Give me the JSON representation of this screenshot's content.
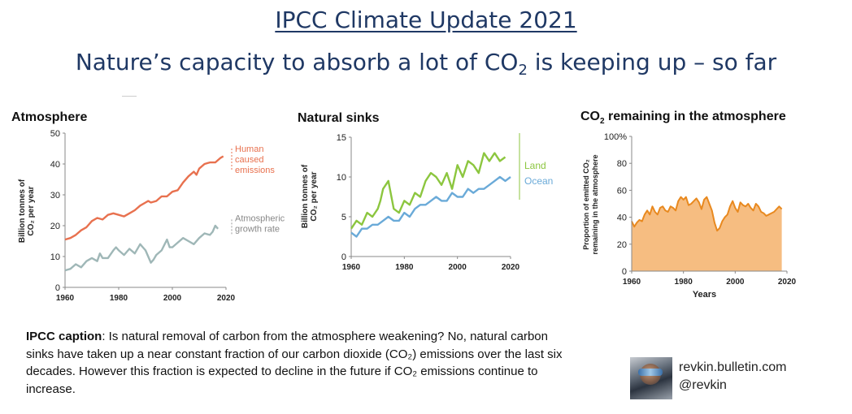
{
  "header": {
    "title": "IPCC Climate Update 2021",
    "subtitle_pre": "Nature’s capacity to absorb a lot of CO",
    "subtitle_sub": "2",
    "subtitle_post": " is keeping up – so far"
  },
  "colors": {
    "title": "#1f3864",
    "emissions": "#e8714f",
    "growth": "#9fb7b7",
    "land": "#8cc63f",
    "ocean": "#6aaad8",
    "remaining": "#f5b26b",
    "remaining_line": "#e8891f"
  },
  "chart_data": [
    {
      "id": "atmosphere",
      "type": "line",
      "title": "Atmosphere",
      "ylabel_line1": "Billion tonnes of",
      "ylabel_line2": "CO₂ per year",
      "xlim": [
        1960,
        2020
      ],
      "ylim": [
        0,
        50
      ],
      "xticks": [
        1960,
        1980,
        2000,
        2020
      ],
      "yticks": [
        0,
        10,
        20,
        30,
        40,
        50
      ],
      "series": [
        {
          "name": "Human caused emissions",
          "label_lines": [
            "Human",
            "caused",
            "emissions"
          ],
          "x": [
            1960,
            1962,
            1964,
            1966,
            1968,
            1970,
            1972,
            1974,
            1976,
            1978,
            1980,
            1982,
            1984,
            1986,
            1988,
            1990,
            1991,
            1992,
            1994,
            1996,
            1998,
            2000,
            2002,
            2004,
            2006,
            2008,
            2009,
            2010,
            2012,
            2014,
            2016,
            2018,
            2019
          ],
          "values": [
            15.5,
            16,
            17,
            18.5,
            19.5,
            21.5,
            22.5,
            22,
            23.5,
            24,
            23.5,
            23,
            24,
            25,
            26.5,
            27.5,
            28,
            27.5,
            28,
            29.5,
            29.5,
            31,
            31.5,
            34,
            36,
            37.5,
            36.5,
            38.5,
            40,
            40.5,
            40.5,
            42,
            42.5
          ]
        },
        {
          "name": "Atmospheric growth rate",
          "label_lines": [
            "Atmospheric",
            "growth rate"
          ],
          "x": [
            1960,
            1962,
            1964,
            1966,
            1968,
            1970,
            1972,
            1973,
            1974,
            1976,
            1978,
            1979,
            1980,
            1982,
            1984,
            1986,
            1988,
            1989,
            1990,
            1992,
            1993,
            1994,
            1996,
            1998,
            1999,
            2000,
            2002,
            2004,
            2006,
            2008,
            2010,
            2012,
            2014,
            2015,
            2016,
            2017
          ],
          "values": [
            5.5,
            6,
            7.5,
            6.5,
            8.5,
            9.5,
            8.5,
            11,
            9.5,
            9.5,
            12,
            13,
            12,
            10.5,
            12.5,
            11,
            14,
            13,
            12,
            8,
            9,
            10.5,
            12,
            15.5,
            13,
            13,
            14.5,
            16,
            15,
            14,
            16,
            17.5,
            17,
            18,
            20,
            19
          ]
        }
      ]
    },
    {
      "id": "natural-sinks",
      "type": "line",
      "title": "Natural sinks",
      "ylabel_line1": "Billion tonnes of",
      "ylabel_line2": "CO₂ per year",
      "xlim": [
        1960,
        2020
      ],
      "ylim": [
        0,
        15
      ],
      "xticks": [
        1960,
        1980,
        2000,
        2020
      ],
      "yticks": [
        0,
        5,
        10,
        15
      ],
      "series": [
        {
          "name": "Land",
          "x": [
            1960,
            1962,
            1964,
            1966,
            1968,
            1970,
            1971,
            1972,
            1974,
            1976,
            1978,
            1980,
            1982,
            1984,
            1986,
            1988,
            1990,
            1992,
            1994,
            1996,
            1998,
            2000,
            2002,
            2004,
            2006,
            2008,
            2010,
            2012,
            2014,
            2016,
            2018
          ],
          "values": [
            3.5,
            4.5,
            4,
            5.5,
            5,
            6,
            7,
            8.5,
            9.5,
            6,
            5.5,
            7,
            6.5,
            8,
            7.5,
            9.5,
            10.5,
            10,
            9,
            10.5,
            8.5,
            11.5,
            10,
            12,
            11.5,
            10.5,
            13,
            12,
            13,
            12,
            12.5
          ]
        },
        {
          "name": "Ocean",
          "x": [
            1960,
            1962,
            1964,
            1966,
            1968,
            1970,
            1972,
            1974,
            1976,
            1978,
            1980,
            1982,
            1984,
            1986,
            1988,
            1990,
            1992,
            1994,
            1996,
            1998,
            2000,
            2002,
            2004,
            2006,
            2008,
            2010,
            2012,
            2014,
            2016,
            2018,
            2020
          ],
          "values": [
            3,
            2.5,
            3.5,
            3.5,
            4,
            4,
            4.5,
            5,
            4.5,
            4.5,
            5.5,
            5,
            6,
            6.5,
            6.5,
            7,
            7.5,
            7,
            7,
            8,
            7.5,
            7.5,
            8.5,
            8,
            8.5,
            8.5,
            9,
            9.5,
            10,
            9.5,
            10
          ]
        }
      ]
    },
    {
      "id": "co2-remaining",
      "type": "area",
      "title_pre": "CO",
      "title_sub": "2",
      "title_post": " remaining in the atmosphere",
      "ylabel_line1": "Proportion of emitted CO₂",
      "ylabel_line2": "remaining in the atmosphere",
      "xlabel": "Years",
      "xlim": [
        1960,
        2020
      ],
      "ylim": [
        0,
        100
      ],
      "xticks": [
        1960,
        1980,
        2000,
        2020
      ],
      "yticks": [
        0,
        20,
        40,
        60,
        80,
        100
      ],
      "ytick_labels": [
        "0",
        "20",
        "40",
        "60",
        "80",
        "100%"
      ],
      "x": [
        1960,
        1961,
        1962,
        1963,
        1964,
        1965,
        1966,
        1967,
        1968,
        1969,
        1970,
        1971,
        1972,
        1973,
        1974,
        1975,
        1976,
        1977,
        1978,
        1979,
        1980,
        1981,
        1982,
        1983,
        1984,
        1985,
        1986,
        1987,
        1988,
        1989,
        1990,
        1991,
        1992,
        1993,
        1994,
        1995,
        1996,
        1997,
        1998,
        1999,
        2000,
        2001,
        2002,
        2003,
        2004,
        2005,
        2006,
        2007,
        2008,
        2009,
        2010,
        2011,
        2012,
        2013,
        2014,
        2015,
        2016,
        2017,
        2018
      ],
      "values": [
        37,
        33,
        36,
        38,
        37,
        42,
        45,
        42,
        48,
        44,
        42,
        47,
        48,
        45,
        44,
        48,
        47,
        45,
        52,
        55,
        53,
        55,
        49,
        50,
        52,
        54,
        51,
        46,
        53,
        55,
        50,
        45,
        36,
        30,
        32,
        37,
        40,
        42,
        48,
        52,
        47,
        44,
        51,
        49,
        48,
        50,
        47,
        45,
        50,
        48,
        44,
        43,
        41,
        42,
        43,
        44,
        46,
        48,
        46
      ]
    }
  ],
  "caption": {
    "label": "IPCC caption",
    "text": ": Is natural removal of carbon from the atmosphere weakening? No, natural carbon sinks have taken up a near constant fraction of our carbon dioxide (CO₂) emissions over the last six decades. However this fraction is expected to decline in the future if CO₂ emissions continue to increase."
  },
  "credit": {
    "url": "revkin.bulletin.com",
    "handle": "@revkin"
  }
}
